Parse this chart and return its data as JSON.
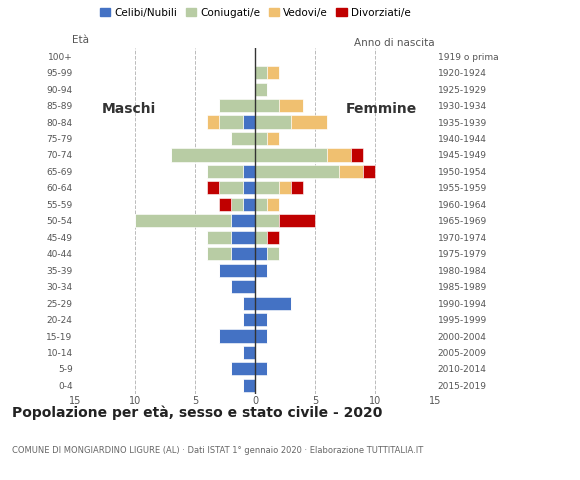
{
  "age_groups": [
    "0-4",
    "5-9",
    "10-14",
    "15-19",
    "20-24",
    "25-29",
    "30-34",
    "35-39",
    "40-44",
    "45-49",
    "50-54",
    "55-59",
    "60-64",
    "65-69",
    "70-74",
    "75-79",
    "80-84",
    "85-89",
    "90-94",
    "95-99",
    "100+"
  ],
  "birth_years": [
    "2015-2019",
    "2010-2014",
    "2005-2009",
    "2000-2004",
    "1995-1999",
    "1990-1994",
    "1985-1989",
    "1980-1984",
    "1975-1979",
    "1970-1974",
    "1965-1969",
    "1960-1964",
    "1955-1959",
    "1950-1954",
    "1945-1949",
    "1940-1944",
    "1935-1939",
    "1930-1934",
    "1925-1929",
    "1920-1924",
    "1919 o prima"
  ],
  "colors": {
    "celibi": "#4472c4",
    "coniugati": "#b8cca4",
    "vedovi": "#f0c070",
    "divorziati": "#c00000"
  },
  "males": {
    "celibi": [
      1,
      2,
      1,
      3,
      1,
      1,
      2,
      3,
      2,
      2,
      2,
      1,
      1,
      1,
      0,
      0,
      1,
      0,
      0,
      0,
      0
    ],
    "coniugati": [
      0,
      0,
      0,
      0,
      0,
      0,
      0,
      0,
      2,
      2,
      8,
      1,
      2,
      3,
      7,
      2,
      2,
      3,
      0,
      0,
      0
    ],
    "vedovi": [
      0,
      0,
      0,
      0,
      0,
      0,
      0,
      0,
      0,
      0,
      0,
      0,
      0,
      0,
      0,
      0,
      1,
      0,
      0,
      0,
      0
    ],
    "divorziati": [
      0,
      0,
      0,
      0,
      0,
      0,
      0,
      0,
      0,
      0,
      0,
      1,
      1,
      0,
      0,
      0,
      0,
      0,
      0,
      0,
      0
    ]
  },
  "females": {
    "celibi": [
      0,
      1,
      0,
      1,
      1,
      3,
      0,
      1,
      1,
      0,
      0,
      0,
      0,
      0,
      0,
      0,
      0,
      0,
      0,
      0,
      0
    ],
    "coniugati": [
      0,
      0,
      0,
      0,
      0,
      0,
      0,
      0,
      1,
      1,
      2,
      1,
      2,
      7,
      6,
      1,
      3,
      2,
      1,
      1,
      0
    ],
    "vedovi": [
      0,
      0,
      0,
      0,
      0,
      0,
      0,
      0,
      0,
      0,
      0,
      1,
      1,
      2,
      2,
      1,
      3,
      2,
      0,
      1,
      0
    ],
    "divorziati": [
      0,
      0,
      0,
      0,
      0,
      0,
      0,
      0,
      0,
      1,
      3,
      0,
      1,
      1,
      1,
      0,
      0,
      0,
      0,
      0,
      0
    ]
  },
  "title": "Popolazione per età, sesso e stato civile - 2020",
  "subtitle": "COMUNE DI MONGIARDINO LIGURE (AL) · Dati ISTAT 1° gennaio 2020 · Elaborazione TUTTITALIA.IT",
  "xlim": 15,
  "legend_labels": [
    "Celibi/Nubili",
    "Coniugati/e",
    "Vedovi/e",
    "Divorziati/e"
  ],
  "ylabel_left": "Età",
  "ylabel_right": "Anno di nascita",
  "label_maschi": "Maschi",
  "label_femmine": "Femmine",
  "background_color": "#ffffff",
  "grid_color": "#bbbbbb"
}
